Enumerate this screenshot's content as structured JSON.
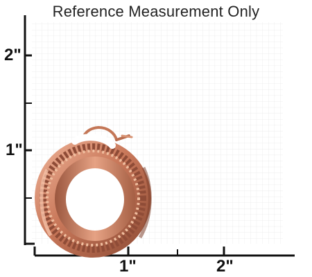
{
  "title": "Reference Measurement Only",
  "y_axis": {
    "labels": [
      "2\"",
      "1\""
    ]
  },
  "x_axis": {
    "labels": [
      "1\"",
      "2\""
    ]
  },
  "product": {
    "icon": "rose-gold-byzantine-hoop-earring-image"
  },
  "colors": {
    "grid": "#e8e8e8",
    "axis": "#111111",
    "metal": "#c97c5d"
  }
}
